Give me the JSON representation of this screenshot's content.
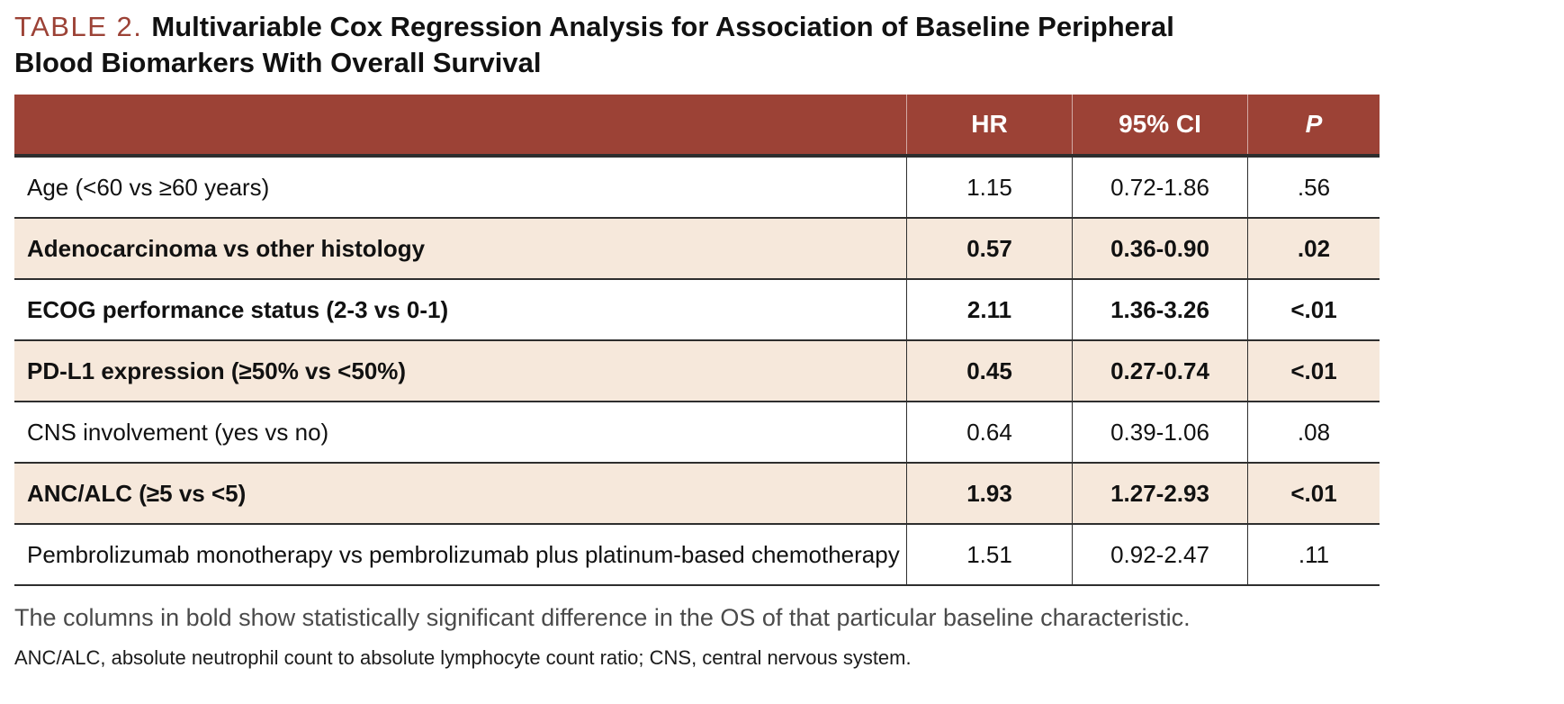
{
  "title": {
    "label": "TABLE 2.",
    "text": "Multivariable Cox Regression Analysis for Association of Baseline Peripheral Blood Biomarkers With Overall Survival"
  },
  "table": {
    "columns": [
      "",
      "HR",
      "95% CI",
      "P"
    ],
    "rows": [
      {
        "label": "Age (<60 vs ≥60 years)",
        "hr": "1.15",
        "ci": "0.72-1.86",
        "p": ".56",
        "bold": false
      },
      {
        "label": "Adenocarcinoma vs other histology",
        "hr": "0.57",
        "ci": "0.36-0.90",
        "p": ".02",
        "bold": true
      },
      {
        "label": "ECOG performance status (2-3 vs 0-1)",
        "hr": "2.11",
        "ci": "1.36-3.26",
        "p": "<.01",
        "bold": true
      },
      {
        "label": "PD-L1 expression (≥50% vs <50%)",
        "hr": "0.45",
        "ci": "0.27-0.74",
        "p": "<.01",
        "bold": true
      },
      {
        "label": "CNS involvement (yes vs no)",
        "hr": "0.64",
        "ci": "0.39-1.06",
        "p": ".08",
        "bold": false
      },
      {
        "label": "ANC/ALC (≥5 vs <5)",
        "hr": "1.93",
        "ci": "1.27-2.93",
        "p": "<.01",
        "bold": true
      },
      {
        "label": "Pembrolizumab monotherapy vs pembrolizumab plus platinum-based chemotherapy",
        "hr": "1.51",
        "ci": "0.92-2.47",
        "p": ".11",
        "bold": false
      }
    ]
  },
  "notes": {
    "note1": "The columns in bold show statistically significant difference in the OS of  that particular baseline characteristic.",
    "note2": "ANC/ALC, absolute neutrophil count to absolute lymphocyte count ratio; CNS, central nervous system."
  },
  "colors": {
    "header_bg": "#9c4236",
    "alt_row_bg": "#f6e8db",
    "accent": "#9c4236"
  }
}
